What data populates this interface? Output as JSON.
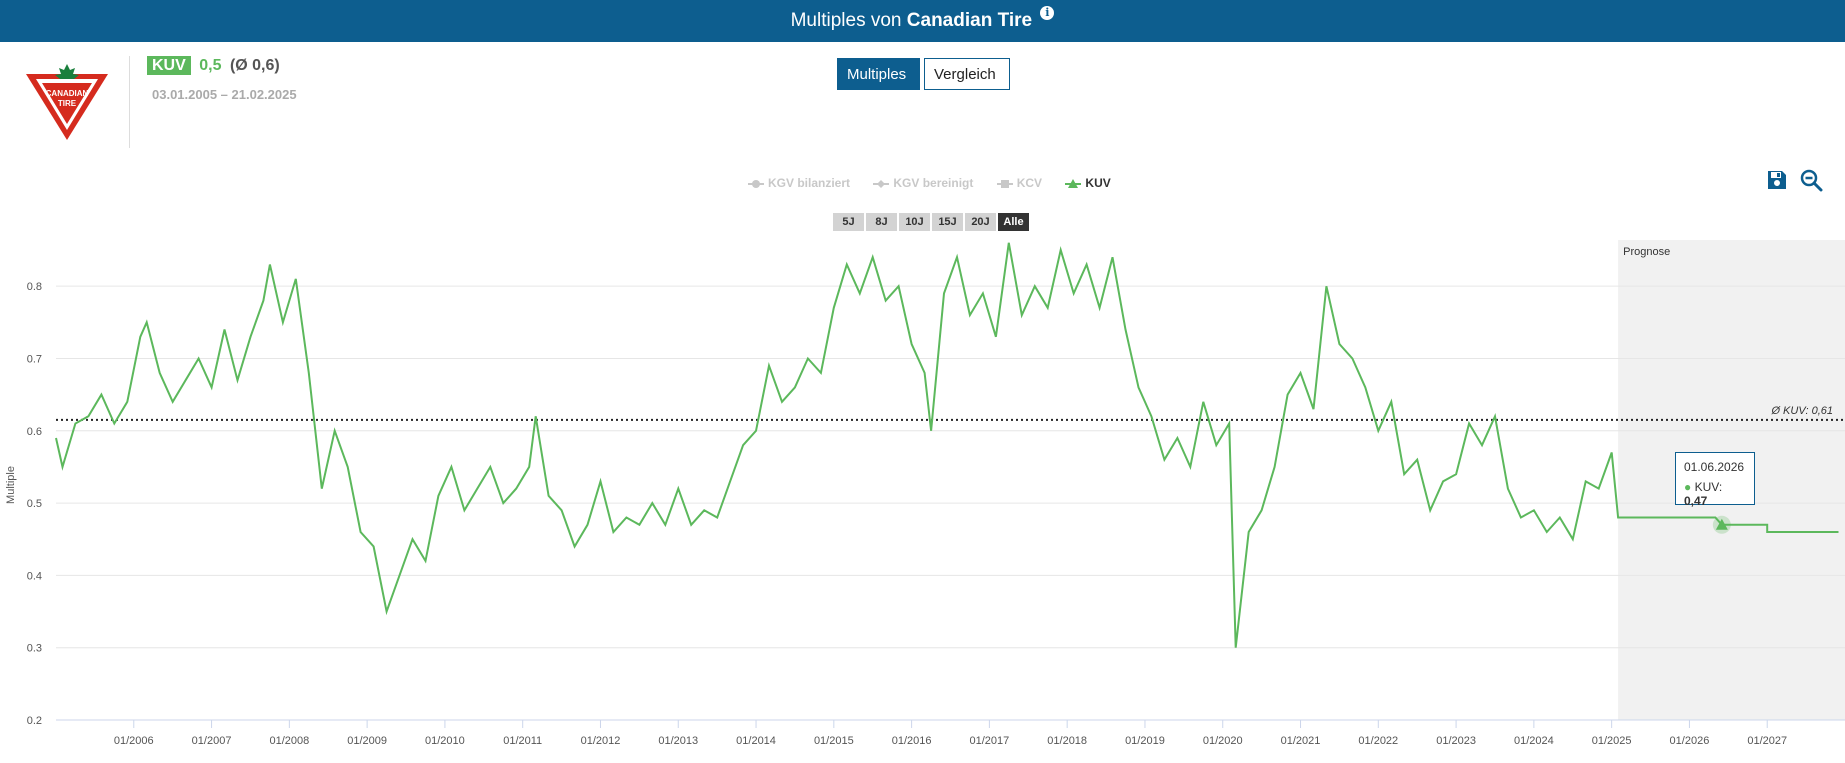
{
  "header": {
    "title_prefix": "Multiples von",
    "company": "Canadian Tire",
    "info_icon": "info-icon"
  },
  "logo": {
    "line1": "CANADIAN",
    "line2": "TIRE",
    "icon": "canadian-tire-logo",
    "colors": {
      "red": "#d52b1e",
      "green": "#1a7f3c"
    }
  },
  "metric": {
    "badge": "KUV",
    "value": "0,5",
    "avg": "(Ø 0,6)",
    "date_range": "03.01.2005 – 21.02.2025"
  },
  "tabs": {
    "active": "Multiples",
    "other": "Vergleich"
  },
  "legend": [
    {
      "label": "KGV bilanziert",
      "active": false,
      "symbol": "circle"
    },
    {
      "label": "KGV bereinigt",
      "active": false,
      "symbol": "diamond"
    },
    {
      "label": "KCV",
      "active": false,
      "symbol": "square"
    },
    {
      "label": "KUV",
      "active": true,
      "symbol": "triangle"
    }
  ],
  "ranges": [
    "5J",
    "8J",
    "10J",
    "15J",
    "20J",
    "Alle"
  ],
  "range_selected": "Alle",
  "tools": {
    "save": "save-icon",
    "zoom_out": "zoom-out-icon"
  },
  "tooltip": {
    "date": "01.06.2026",
    "label": "KUV:",
    "value": "0,47"
  },
  "colors": {
    "brand": "#0d5e8f",
    "series": "#5cb85c",
    "forecast_bg": "#f1f1f1"
  },
  "chart_data": {
    "type": "line",
    "ylabel": "Multiple",
    "ylim": [
      0.2,
      0.8
    ],
    "yticks": [
      "0.2",
      "0.3",
      "0.4",
      "0.5",
      "0.6",
      "0.7",
      "0.8"
    ],
    "xticks": [
      "01/2006",
      "01/2007",
      "01/2008",
      "01/2009",
      "01/2010",
      "01/2011",
      "01/2012",
      "01/2013",
      "01/2014",
      "01/2015",
      "01/2016",
      "01/2017",
      "01/2018",
      "01/2019",
      "01/2020",
      "01/2021",
      "01/2022",
      "01/2023",
      "01/2024",
      "01/2025",
      "01/2026",
      "01/2027"
    ],
    "average": {
      "value": 0.615,
      "label": "Ø KUV: 0,61"
    },
    "forecast_label": "Prognose",
    "forecast_start": "2025-02",
    "series": [
      {
        "name": "KUV",
        "points": [
          [
            "2005-01",
            0.59
          ],
          [
            "2005-02",
            0.55
          ],
          [
            "2005-04",
            0.61
          ],
          [
            "2005-06",
            0.62
          ],
          [
            "2005-08",
            0.65
          ],
          [
            "2005-10",
            0.61
          ],
          [
            "2005-12",
            0.64
          ],
          [
            "2006-02",
            0.73
          ],
          [
            "2006-03",
            0.75
          ],
          [
            "2006-05",
            0.68
          ],
          [
            "2006-07",
            0.64
          ],
          [
            "2006-09",
            0.67
          ],
          [
            "2006-11",
            0.7
          ],
          [
            "2007-01",
            0.66
          ],
          [
            "2007-03",
            0.74
          ],
          [
            "2007-05",
            0.67
          ],
          [
            "2007-07",
            0.73
          ],
          [
            "2007-09",
            0.78
          ],
          [
            "2007-10",
            0.83
          ],
          [
            "2007-12",
            0.75
          ],
          [
            "2008-02",
            0.81
          ],
          [
            "2008-04",
            0.68
          ],
          [
            "2008-06",
            0.52
          ],
          [
            "2008-08",
            0.6
          ],
          [
            "2008-10",
            0.55
          ],
          [
            "2008-12",
            0.46
          ],
          [
            "2009-02",
            0.44
          ],
          [
            "2009-04",
            0.35
          ],
          [
            "2009-06",
            0.4
          ],
          [
            "2009-08",
            0.45
          ],
          [
            "2009-10",
            0.42
          ],
          [
            "2009-12",
            0.51
          ],
          [
            "2010-02",
            0.55
          ],
          [
            "2010-04",
            0.49
          ],
          [
            "2010-06",
            0.52
          ],
          [
            "2010-08",
            0.55
          ],
          [
            "2010-10",
            0.5
          ],
          [
            "2010-12",
            0.52
          ],
          [
            "2011-02",
            0.55
          ],
          [
            "2011-03",
            0.62
          ],
          [
            "2011-05",
            0.51
          ],
          [
            "2011-07",
            0.49
          ],
          [
            "2011-09",
            0.44
          ],
          [
            "2011-11",
            0.47
          ],
          [
            "2012-01",
            0.53
          ],
          [
            "2012-03",
            0.46
          ],
          [
            "2012-05",
            0.48
          ],
          [
            "2012-07",
            0.47
          ],
          [
            "2012-09",
            0.5
          ],
          [
            "2012-11",
            0.47
          ],
          [
            "2013-01",
            0.52
          ],
          [
            "2013-03",
            0.47
          ],
          [
            "2013-05",
            0.49
          ],
          [
            "2013-07",
            0.48
          ],
          [
            "2013-09",
            0.53
          ],
          [
            "2013-11",
            0.58
          ],
          [
            "2014-01",
            0.6
          ],
          [
            "2014-03",
            0.69
          ],
          [
            "2014-05",
            0.64
          ],
          [
            "2014-07",
            0.66
          ],
          [
            "2014-09",
            0.7
          ],
          [
            "2014-11",
            0.68
          ],
          [
            "2015-01",
            0.77
          ],
          [
            "2015-03",
            0.83
          ],
          [
            "2015-05",
            0.79
          ],
          [
            "2015-07",
            0.84
          ],
          [
            "2015-09",
            0.78
          ],
          [
            "2015-11",
            0.8
          ],
          [
            "2016-01",
            0.72
          ],
          [
            "2016-03",
            0.68
          ],
          [
            "2016-04",
            0.6
          ],
          [
            "2016-06",
            0.79
          ],
          [
            "2016-08",
            0.84
          ],
          [
            "2016-10",
            0.76
          ],
          [
            "2016-12",
            0.79
          ],
          [
            "2017-02",
            0.73
          ],
          [
            "2017-04",
            0.86
          ],
          [
            "2017-06",
            0.76
          ],
          [
            "2017-08",
            0.8
          ],
          [
            "2017-10",
            0.77
          ],
          [
            "2017-12",
            0.85
          ],
          [
            "2018-02",
            0.79
          ],
          [
            "2018-04",
            0.83
          ],
          [
            "2018-06",
            0.77
          ],
          [
            "2018-08",
            0.84
          ],
          [
            "2018-10",
            0.74
          ],
          [
            "2018-12",
            0.66
          ],
          [
            "2019-02",
            0.62
          ],
          [
            "2019-04",
            0.56
          ],
          [
            "2019-06",
            0.59
          ],
          [
            "2019-08",
            0.55
          ],
          [
            "2019-10",
            0.64
          ],
          [
            "2019-12",
            0.58
          ],
          [
            "2020-02",
            0.61
          ],
          [
            "2020-03",
            0.3
          ],
          [
            "2020-05",
            0.46
          ],
          [
            "2020-07",
            0.49
          ],
          [
            "2020-09",
            0.55
          ],
          [
            "2020-11",
            0.65
          ],
          [
            "2021-01",
            0.68
          ],
          [
            "2021-03",
            0.63
          ],
          [
            "2021-05",
            0.8
          ],
          [
            "2021-07",
            0.72
          ],
          [
            "2021-09",
            0.7
          ],
          [
            "2021-11",
            0.66
          ],
          [
            "2022-01",
            0.6
          ],
          [
            "2022-03",
            0.64
          ],
          [
            "2022-05",
            0.54
          ],
          [
            "2022-07",
            0.56
          ],
          [
            "2022-09",
            0.49
          ],
          [
            "2022-11",
            0.53
          ],
          [
            "2023-01",
            0.54
          ],
          [
            "2023-03",
            0.61
          ],
          [
            "2023-05",
            0.58
          ],
          [
            "2023-07",
            0.62
          ],
          [
            "2023-09",
            0.52
          ],
          [
            "2023-11",
            0.48
          ],
          [
            "2024-01",
            0.49
          ],
          [
            "2024-03",
            0.46
          ],
          [
            "2024-05",
            0.48
          ],
          [
            "2024-07",
            0.45
          ],
          [
            "2024-09",
            0.53
          ],
          [
            "2024-11",
            0.52
          ],
          [
            "2025-01",
            0.57
          ],
          [
            "2025-02",
            0.48
          ],
          [
            "2026-05",
            0.48
          ],
          [
            "2026-06",
            0.47
          ],
          [
            "2027-01",
            0.47
          ],
          [
            "2027-01",
            0.46
          ],
          [
            "2027-12",
            0.46
          ]
        ]
      }
    ],
    "highlight": {
      "x": "2026-06",
      "y": 0.47
    }
  }
}
